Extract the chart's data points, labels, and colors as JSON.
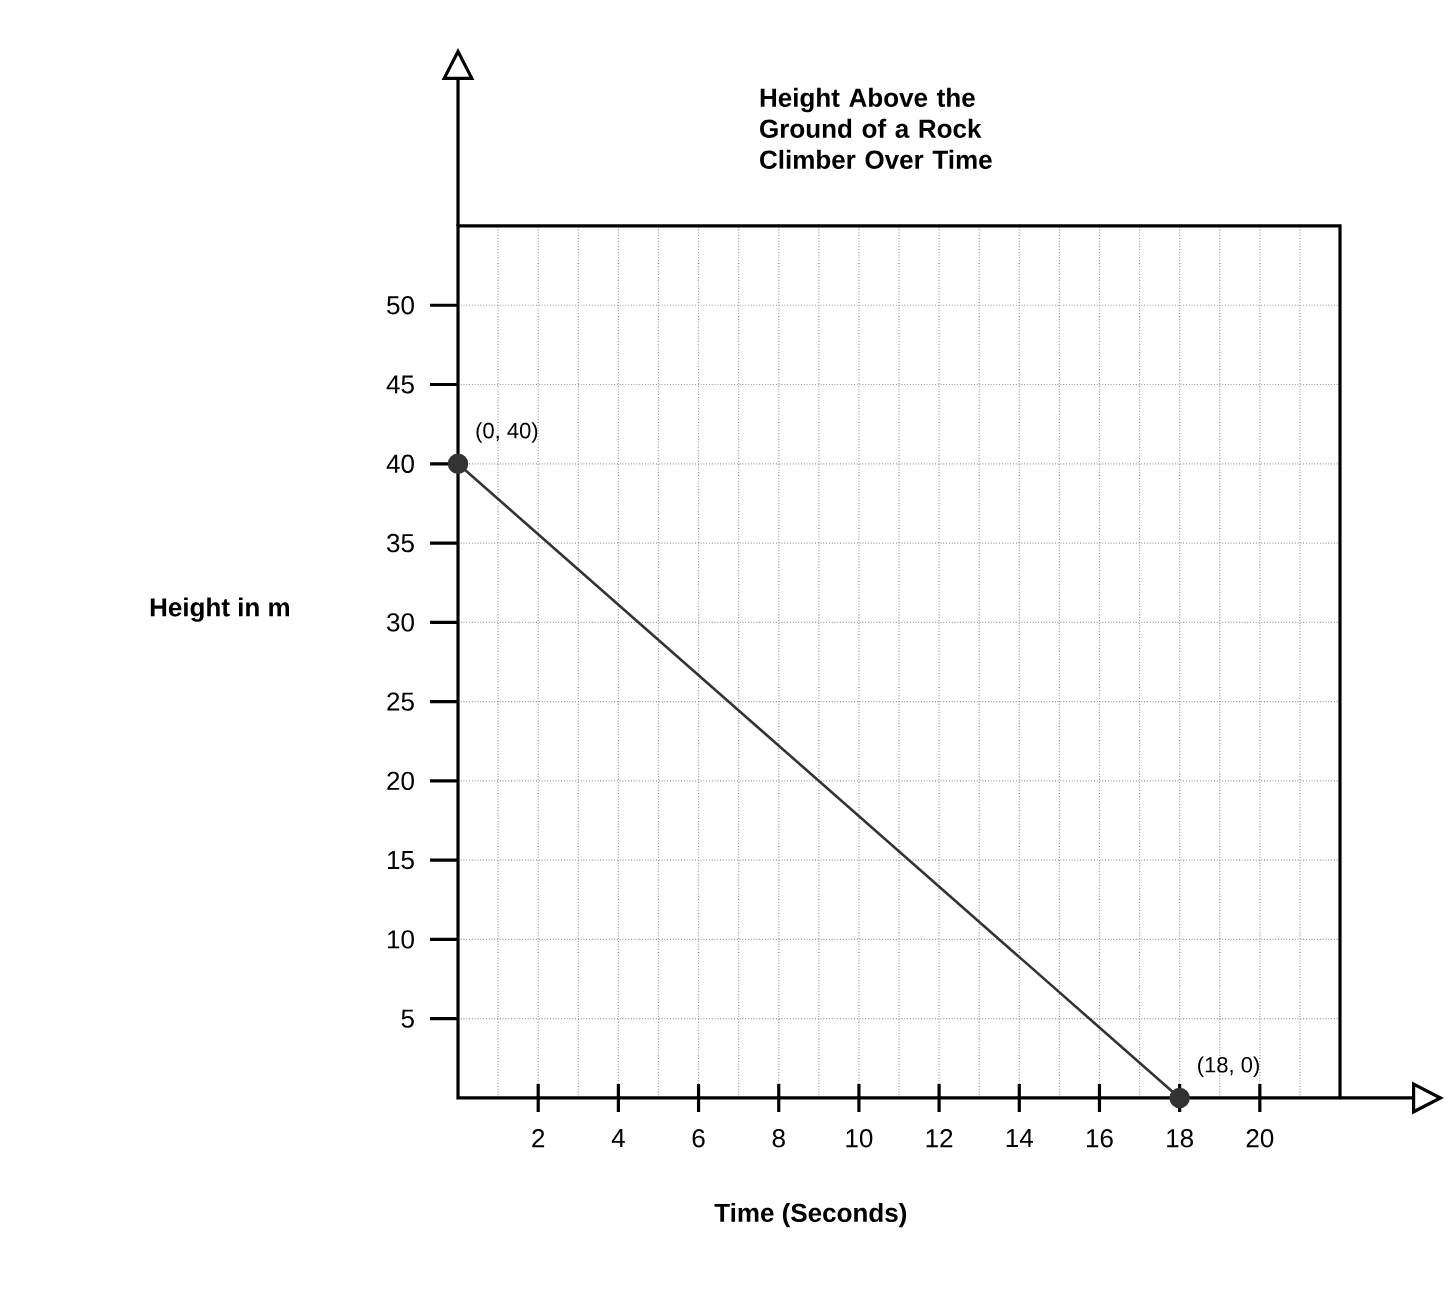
{
  "chart_data": {
    "type": "line",
    "title": "Height Above the Ground of a Rock Climber Over Time",
    "xlabel": "Time (Seconds)",
    "ylabel": "Height in m",
    "x": [
      0,
      18
    ],
    "series": [
      {
        "color": "#333333",
        "values": [
          40,
          0
        ]
      }
    ],
    "marker": "circle",
    "xlim": [
      0,
      22
    ],
    "ylim": [
      0,
      55
    ],
    "xticks": [
      2,
      4,
      6,
      8,
      10,
      12,
      14,
      16,
      18,
      20
    ],
    "yticks": [
      5,
      10,
      15,
      20,
      25,
      30,
      35,
      40,
      45,
      50
    ],
    "grid": true,
    "annotations": [
      {
        "text": "(0, 40)",
        "x": 0,
        "y": 40
      },
      {
        "text": "(18, 0)",
        "x": 18,
        "y": 0
      }
    ]
  }
}
